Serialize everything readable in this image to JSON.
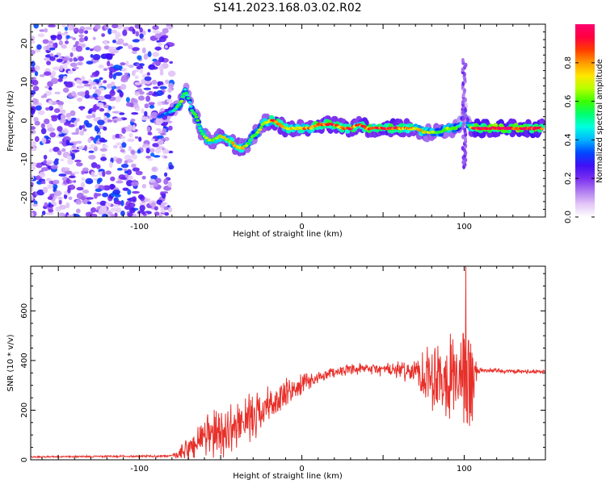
{
  "title": "S141.2023.168.03.02.R02",
  "chart_data": [
    {
      "type": "heatmap",
      "xlabel": "Height of straight line (km)",
      "ylabel": "Frequency (Hz)",
      "xlim": [
        -167,
        150
      ],
      "ylim": [
        -25,
        25
      ],
      "x_ticks": [
        -100,
        0,
        100
      ],
      "y_ticks": [
        20,
        10,
        0,
        -10,
        -20
      ],
      "colorbar": {
        "label": "Normalized spectral amplitude",
        "range": [
          0,
          1
        ],
        "ticks": [
          0.0,
          0.2,
          0.4,
          0.6,
          0.8
        ],
        "tick_labels": [
          "0.0",
          "0.2",
          "0.4",
          "0.6",
          "0.8"
        ],
        "colors": [
          "#ffffff",
          "#e3c6f7",
          "#b07cf0",
          "#7a2ef0",
          "#3f0ff5",
          "#0047ff",
          "#00b5ff",
          "#00ffe0",
          "#00ff70",
          "#3cff00",
          "#b8ff00",
          "#ffe600",
          "#ff9a00",
          "#ff3b00",
          "#ff0040",
          "#ff006e"
        ]
      },
      "noise_region_x": [
        -167,
        -80
      ],
      "ridge": {
        "x": [
          -88,
          -82,
          -78,
          -74,
          -72,
          -70,
          -68,
          -65,
          -62,
          -58,
          -54,
          -50,
          -45,
          -40,
          -36,
          -33,
          -30,
          -27,
          -24,
          -20,
          -17,
          -14,
          -10,
          -5,
          0,
          5,
          10,
          15,
          20,
          25,
          30,
          35,
          40,
          45,
          50,
          55,
          60,
          65,
          70,
          75,
          80,
          85,
          90,
          95,
          98,
          100,
          102,
          105,
          110,
          120,
          130,
          140,
          148
        ],
        "y": [
          1,
          2,
          3,
          5,
          8,
          6,
          3,
          1,
          -3,
          -5,
          -5,
          -4,
          -5,
          -7,
          -7,
          -6,
          -4,
          -3,
          -1,
          0,
          0,
          -1,
          -2,
          -2,
          -2,
          -2,
          -1,
          -1,
          -1,
          -2,
          -2,
          -1,
          -2,
          -2,
          -2,
          -2,
          -2,
          -2,
          -2,
          -3,
          -3,
          -3,
          -2,
          -2,
          -1,
          3,
          -1,
          -2,
          -2,
          -2,
          -2,
          -2,
          -2
        ],
        "amp": [
          0.3,
          0.4,
          0.5,
          0.6,
          0.55,
          0.5,
          0.5,
          0.55,
          0.6,
          0.65,
          0.6,
          0.7,
          0.7,
          0.75,
          0.7,
          0.6,
          0.55,
          0.6,
          0.65,
          0.75,
          0.9,
          0.85,
          0.75,
          0.7,
          0.75,
          0.8,
          0.9,
          0.85,
          0.85,
          0.8,
          0.9,
          0.8,
          0.85,
          0.85,
          0.85,
          0.9,
          0.85,
          0.8,
          0.75,
          0.7,
          0.65,
          0.6,
          0.65,
          0.6,
          0.45,
          0.3,
          0.4,
          0.85,
          0.95,
          0.95,
          0.95,
          0.95,
          0.9
        ]
      },
      "spike": {
        "x": 100,
        "y_range": [
          -12,
          16
        ],
        "amp": 0.2
      }
    },
    {
      "type": "line",
      "xlabel": "Height of straight line (km)",
      "ylabel": "SNR (10 * v/v)",
      "xlim": [
        -167,
        150
      ],
      "ylim": [
        0,
        780
      ],
      "x_ticks": [
        -100,
        0,
        100
      ],
      "y_ticks": [
        0,
        200,
        400,
        600
      ],
      "line_color": "#e8302a",
      "envelope": {
        "x": [
          -167,
          -80,
          -75,
          -70,
          -65,
          -60,
          -55,
          -50,
          -45,
          -40,
          -35,
          -30,
          -25,
          -20,
          -15,
          -10,
          -5,
          0,
          5,
          10,
          15,
          20,
          25,
          30,
          40,
          50,
          60,
          70,
          75,
          80,
          85,
          88,
          92,
          96,
          100,
          102,
          104,
          106,
          108,
          110,
          120,
          130,
          140,
          150
        ],
        "base": [
          12,
          15,
          25,
          40,
          70,
          90,
          100,
          110,
          120,
          140,
          160,
          180,
          200,
          220,
          240,
          260,
          280,
          300,
          320,
          330,
          345,
          355,
          360,
          360,
          365,
          365,
          360,
          355,
          350,
          345,
          350,
          345,
          340,
          340,
          330,
          320,
          310,
          340,
          355,
          360,
          360,
          355,
          355,
          355
        ],
        "amp": [
          4,
          5,
          30,
          60,
          90,
          110,
          110,
          120,
          100,
          120,
          100,
          110,
          90,
          90,
          80,
          80,
          60,
          50,
          40,
          30,
          25,
          25,
          25,
          25,
          30,
          30,
          40,
          60,
          140,
          180,
          200,
          220,
          200,
          180,
          260,
          330,
          320,
          150,
          30,
          10,
          10,
          10,
          10,
          10
        ]
      },
      "peak": {
        "x": 101,
        "y": 780
      }
    }
  ]
}
